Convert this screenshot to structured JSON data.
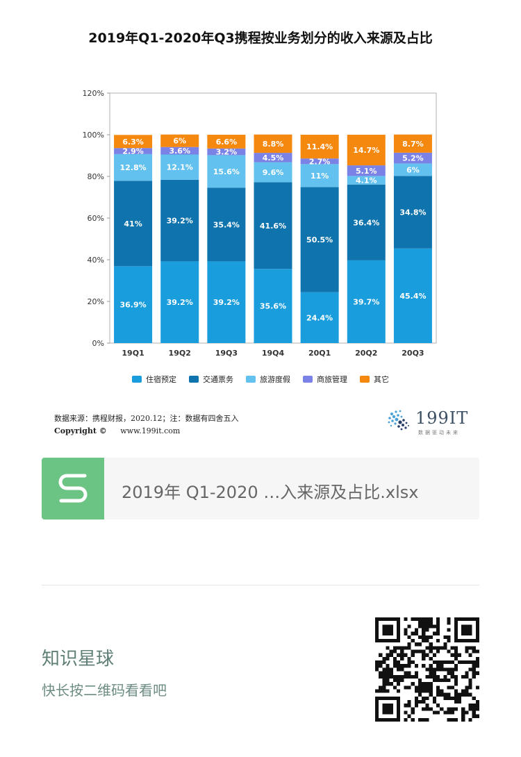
{
  "title": "2019年Q1-2020年Q3携程按业务划分的收入来源及占比",
  "chart_data": {
    "type": "bar",
    "stacked": true,
    "categories": [
      "19Q1",
      "19Q2",
      "19Q3",
      "19Q4",
      "20Q1",
      "20Q2",
      "20Q3"
    ],
    "series": [
      {
        "name": "住宿预定",
        "color": "#1a9ddc",
        "values": [
          36.9,
          39.2,
          39.2,
          35.6,
          24.4,
          39.7,
          45.4
        ],
        "labels": [
          "36.9%",
          "39.2%",
          "39.2%",
          "35.6%",
          "24.4%",
          "39.7%",
          "45.4%"
        ]
      },
      {
        "name": "交通票务",
        "color": "#0f73ad",
        "values": [
          41,
          39.2,
          35.4,
          41.6,
          50.5,
          36.4,
          34.8
        ],
        "labels": [
          "41%",
          "39.2%",
          "35.4%",
          "41.6%",
          "50.5%",
          "36.4%",
          "34.8%"
        ]
      },
      {
        "name": "旅游度假",
        "color": "#62c1ee",
        "values": [
          12.8,
          12.1,
          15.6,
          9.6,
          11,
          4.1,
          6
        ],
        "labels": [
          "12.8%",
          "12.1%",
          "15.6%",
          "9.6%",
          "11%",
          "4.1%",
          "6%"
        ]
      },
      {
        "name": "商旅管理",
        "color": "#7a82e6",
        "values": [
          2.9,
          3.6,
          3.2,
          4.5,
          2.7,
          5.1,
          5.2
        ],
        "labels": [
          "2.9%",
          "3.6%",
          "3.2%",
          "4.5%",
          "2.7%",
          "5.1%",
          "5.2%"
        ]
      },
      {
        "name": "其它",
        "color": "#f5880e",
        "values": [
          6.3,
          6,
          6.6,
          8.8,
          11.4,
          14.7,
          8.7
        ],
        "labels": [
          "6.3%",
          "6%",
          "6.6%",
          "8.8%",
          "11.4%",
          "14.7%",
          "8.7%"
        ]
      }
    ],
    "yticks": [
      "0%",
      "20%",
      "40%",
      "60%",
      "80%",
      "100%",
      "120%"
    ],
    "ylim": [
      0,
      120
    ],
    "legend_position": "bottom"
  },
  "source": "数据来源：携程财报，2020.12；注：数据有四舍五入",
  "copyright_label": "Copyright ©",
  "copyright_url": "www.199it.com",
  "brand": {
    "name": "199IT",
    "tagline": "数据驱动未来",
    "color": "#3d4f63"
  },
  "file": {
    "icon": "s-file-icon",
    "name": "2019年 Q1-2020 …入来源及占比.xlsx",
    "icon_color": "#6cc484"
  },
  "planet": {
    "title": "知识星球",
    "subtitle": "快长按二维码看看吧"
  },
  "qr_icon": "qr-code-icon"
}
